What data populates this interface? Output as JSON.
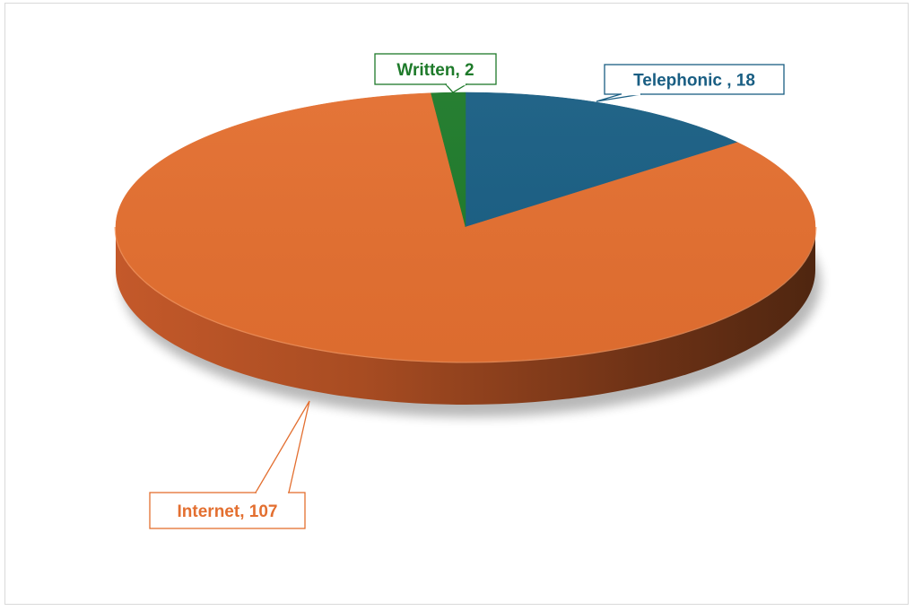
{
  "chart_data": {
    "type": "pie",
    "style": "3d",
    "title": "",
    "slices": [
      {
        "label": "Telephonic ",
        "value": 18,
        "color": "#195e83",
        "data_label": "Telephonic , 18"
      },
      {
        "label": "Internet",
        "value": 107,
        "color": "#e36f30",
        "data_label": "Internet, 107"
      },
      {
        "label": "Written",
        "value": 2,
        "color": "#1e7a2a",
        "data_label": "Written, 2"
      }
    ],
    "legend": "none"
  }
}
